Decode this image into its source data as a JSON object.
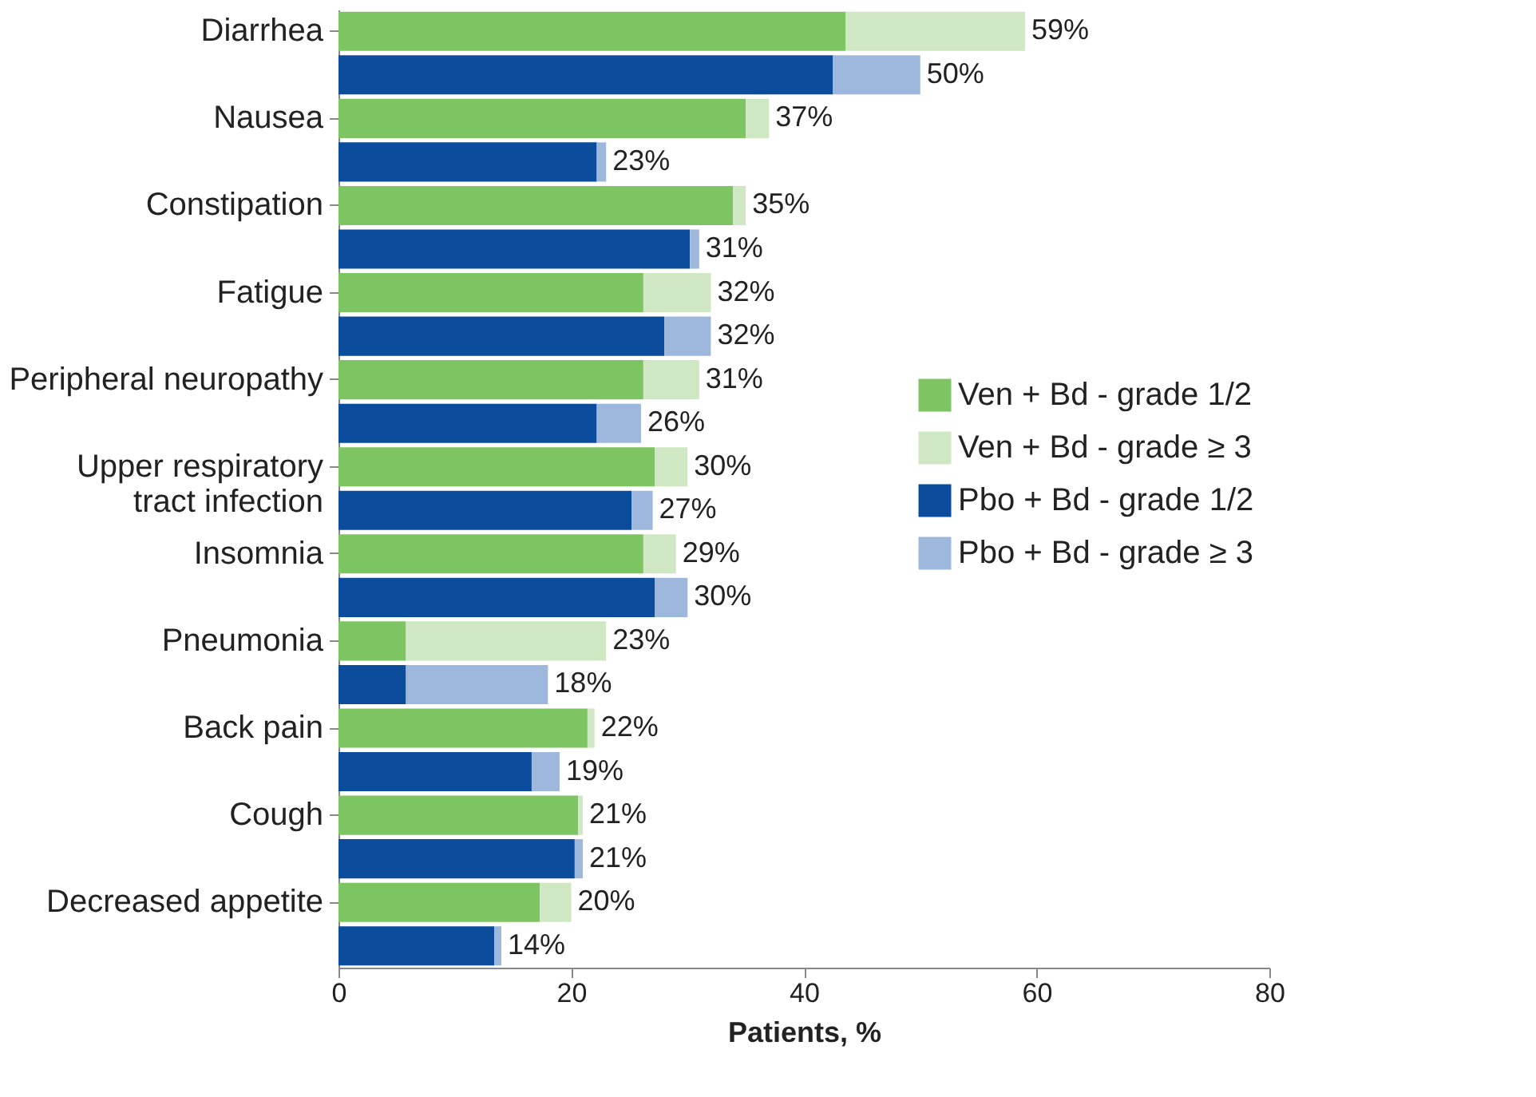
{
  "chart_data": {
    "type": "bar",
    "orientation": "horizontal",
    "stacked": true,
    "xlabel": "Patients, %",
    "categories": [
      "Diarrhea",
      null,
      "Nausea",
      null,
      "Constipation",
      null,
      "Fatigue",
      null,
      "Peripheral neuropathy",
      null,
      "Upper respiratory tract infection",
      null,
      "Insomnia",
      null,
      "Pneumonia",
      null,
      "Back pain",
      null,
      "Cough",
      null,
      "Decreased appetite",
      null
    ],
    "series": [
      {
        "name": "Ven + Bd - grade 1/2",
        "color": "#7dc462",
        "values": [
          43.6,
          null,
          35.0,
          null,
          33.9,
          null,
          26.2,
          null,
          26.2,
          null,
          27.2,
          null,
          26.2,
          null,
          5.8,
          null,
          21.4,
          null,
          20.6,
          null,
          17.3,
          null
        ]
      },
      {
        "name": "Ven + Bd - grade ≥ 3",
        "color": "#cfe8c3",
        "values": [
          15.4,
          null,
          2.0,
          null,
          1.1,
          null,
          5.8,
          null,
          4.8,
          null,
          2.8,
          null,
          2.8,
          null,
          17.2,
          null,
          0.6,
          null,
          0.4,
          null,
          2.7,
          null
        ]
      },
      {
        "name": "Pbo + Bd - grade 1/2",
        "color": "#0b4c9c",
        "values": [
          null,
          42.5,
          null,
          22.2,
          null,
          30.2,
          null,
          28.0,
          null,
          22.2,
          null,
          25.2,
          null,
          27.2,
          null,
          5.8,
          null,
          16.6,
          null,
          20.3,
          null,
          13.4
        ]
      },
      {
        "name": "Pbo + Bd - grade ≥ 3",
        "color": "#9db8dc",
        "values": [
          null,
          7.5,
          null,
          0.8,
          null,
          0.8,
          null,
          4.0,
          null,
          3.8,
          null,
          1.8,
          null,
          2.8,
          null,
          12.2,
          null,
          2.4,
          null,
          0.7,
          null,
          0.6
        ]
      }
    ],
    "totals": [
      "59%",
      "50%",
      "37%",
      "23%",
      "35%",
      "31%",
      "32%",
      "32%",
      "31%",
      "26%",
      "30%",
      "27%",
      "29%",
      "30%",
      "23%",
      "18%",
      "22%",
      "19%",
      "21%",
      "21%",
      "20%",
      "14%"
    ],
    "xlim": [
      0,
      80
    ],
    "xticks": [
      0,
      20,
      40,
      60,
      80
    ],
    "grid": false,
    "legend": "right"
  }
}
